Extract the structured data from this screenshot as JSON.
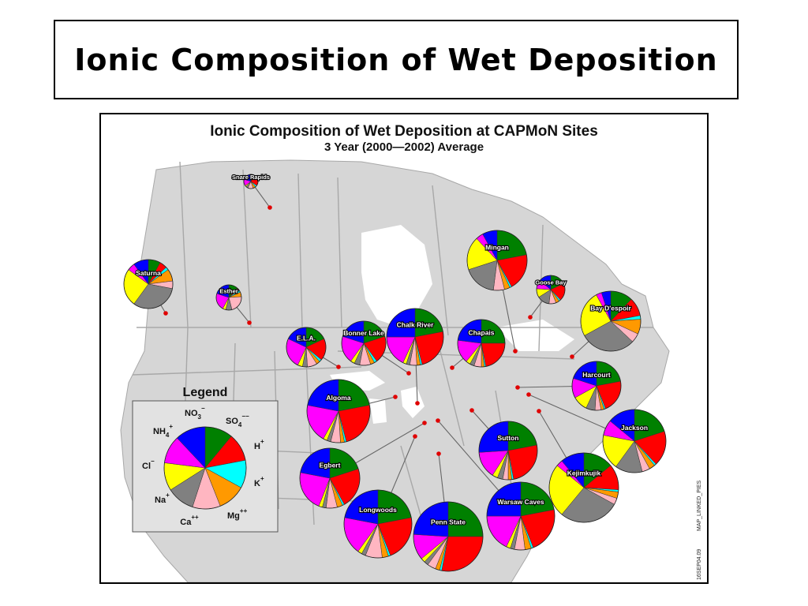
{
  "slide": {
    "title": "Ionic Composition of Wet Deposition"
  },
  "map": {
    "title_line1": "Ionic Composition of Wet Deposition at CAPMoN Sites",
    "title_line2": "3 Year (2000—2002) Average",
    "side_note_1": "MAP_LINKED_PIES",
    "side_note_2": "16SEP04.09",
    "site_dot_color": "#e00000",
    "land_color": "#d6d6d6",
    "water_color": "#ffffff",
    "border_color": "#a8a8a8"
  },
  "legend": {
    "title": "Legend",
    "ions": [
      {
        "key": "so4",
        "label": "SO",
        "sub": "4",
        "sup": "−−",
        "color": "#008000"
      },
      {
        "key": "h",
        "label": "H",
        "sub": "",
        "sup": "+",
        "color": "#ff0000"
      },
      {
        "key": "k",
        "label": "K",
        "sub": "",
        "sup": "+",
        "color": "#00ffff"
      },
      {
        "key": "mg",
        "label": "Mg",
        "sub": "",
        "sup": "++",
        "color": "#ff9900"
      },
      {
        "key": "ca",
        "label": "Ca",
        "sub": "",
        "sup": "++",
        "color": "#ffb6c1"
      },
      {
        "key": "na",
        "label": "Na",
        "sub": "",
        "sup": "+",
        "color": "#808080"
      },
      {
        "key": "cl",
        "label": "Cl",
        "sub": "",
        "sup": "−",
        "color": "#ffff00"
      },
      {
        "key": "nh4",
        "label": "NH",
        "sub": "4",
        "sup": "+",
        "color": "#ff00ff"
      },
      {
        "key": "no3",
        "label": "NO",
        "sub": "3",
        "sup": "−",
        "color": "#0000ff"
      }
    ],
    "legend_pie_fractions": [
      0.11,
      0.11,
      0.11,
      0.11,
      0.11,
      0.11,
      0.11,
      0.11,
      0.12
    ]
  },
  "sites": [
    {
      "name": "Snare Rapids",
      "fractions": [
        0.1,
        0.25,
        0.04,
        0.06,
        0.12,
        0.05,
        0.03,
        0.15,
        0.2
      ]
    },
    {
      "name": "Saturna",
      "fractions": [
        0.08,
        0.05,
        0.02,
        0.08,
        0.05,
        0.32,
        0.25,
        0.05,
        0.1
      ]
    },
    {
      "name": "Esther",
      "fractions": [
        0.12,
        0.03,
        0.03,
        0.06,
        0.22,
        0.08,
        0.04,
        0.22,
        0.2
      ]
    },
    {
      "name": "Mingan",
      "fractions": [
        0.22,
        0.2,
        0.01,
        0.03,
        0.06,
        0.18,
        0.18,
        0.04,
        0.08
      ]
    },
    {
      "name": "Goose Bay",
      "fractions": [
        0.18,
        0.2,
        0.02,
        0.04,
        0.08,
        0.14,
        0.1,
        0.1,
        0.14
      ]
    },
    {
      "name": "Bay D'espoir",
      "fractions": [
        0.12,
        0.1,
        0.02,
        0.08,
        0.05,
        0.3,
        0.25,
        0.03,
        0.05
      ]
    },
    {
      "name": "E.L.A.",
      "fractions": [
        0.18,
        0.18,
        0.02,
        0.03,
        0.08,
        0.04,
        0.04,
        0.25,
        0.18
      ]
    },
    {
      "name": "Bonner Lake",
      "fractions": [
        0.2,
        0.2,
        0.02,
        0.03,
        0.08,
        0.04,
        0.03,
        0.2,
        0.2
      ]
    },
    {
      "name": "Chalk River",
      "fractions": [
        0.22,
        0.24,
        0.01,
        0.02,
        0.04,
        0.02,
        0.02,
        0.18,
        0.25
      ]
    },
    {
      "name": "Chapais",
      "fractions": [
        0.25,
        0.22,
        0.01,
        0.02,
        0.05,
        0.03,
        0.03,
        0.16,
        0.23
      ]
    },
    {
      "name": "Harcourt",
      "fractions": [
        0.22,
        0.22,
        0.01,
        0.02,
        0.04,
        0.06,
        0.1,
        0.13,
        0.2
      ]
    },
    {
      "name": "Algoma",
      "fractions": [
        0.22,
        0.24,
        0.01,
        0.02,
        0.05,
        0.02,
        0.02,
        0.2,
        0.22
      ]
    },
    {
      "name": "Jackson",
      "fractions": [
        0.2,
        0.18,
        0.01,
        0.03,
        0.04,
        0.14,
        0.18,
        0.08,
        0.14
      ]
    },
    {
      "name": "Sutton",
      "fractions": [
        0.22,
        0.25,
        0.01,
        0.02,
        0.03,
        0.03,
        0.03,
        0.15,
        0.26
      ]
    },
    {
      "name": "Egbert",
      "fractions": [
        0.2,
        0.22,
        0.01,
        0.03,
        0.06,
        0.02,
        0.02,
        0.22,
        0.22
      ]
    },
    {
      "name": "Kejimkujik",
      "fractions": [
        0.14,
        0.12,
        0.01,
        0.03,
        0.03,
        0.28,
        0.25,
        0.03,
        0.11
      ]
    },
    {
      "name": "Longwoods",
      "fractions": [
        0.22,
        0.22,
        0.01,
        0.03,
        0.08,
        0.02,
        0.02,
        0.18,
        0.22
      ]
    },
    {
      "name": "Penn State",
      "fractions": [
        0.25,
        0.28,
        0.01,
        0.02,
        0.04,
        0.02,
        0.02,
        0.12,
        0.24
      ]
    },
    {
      "name": "Warsaw Caves",
      "fractions": [
        0.22,
        0.22,
        0.01,
        0.03,
        0.05,
        0.02,
        0.02,
        0.18,
        0.25
      ]
    }
  ]
}
